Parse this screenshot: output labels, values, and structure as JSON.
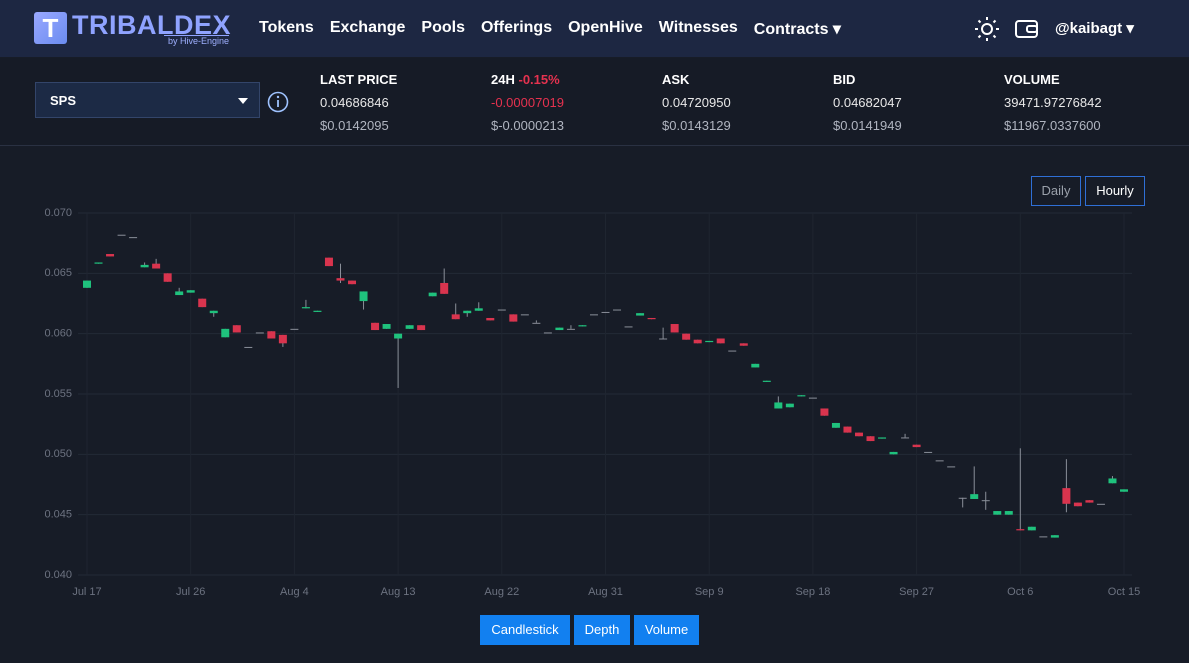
{
  "nav": {
    "logo": "TRIBALDEX",
    "logo_sub": "by Hive-Engine",
    "items": [
      "Tokens",
      "Exchange",
      "Pools",
      "Offerings",
      "OpenHive",
      "Witnesses",
      "Contracts"
    ],
    "user": "@kaibagt"
  },
  "market": {
    "token": "SPS",
    "stats": [
      {
        "label": "LAST PRICE",
        "value": "0.04686846",
        "usd": "$0.0142095"
      },
      {
        "label": "24H",
        "change": "-0.15%",
        "value": "-0.00007019",
        "usd": "$-0.0000213"
      },
      {
        "label": "ASK",
        "value": "0.04720950",
        "usd": "$0.0143129"
      },
      {
        "label": "BID",
        "value": "0.04682047",
        "usd": "$0.0141949"
      },
      {
        "label": "VOLUME",
        "value": "39471.97276842",
        "usd": "$11967.0337600"
      }
    ]
  },
  "interval_buttons": [
    "Daily",
    "Hourly"
  ],
  "view_buttons": [
    "Candlestick",
    "Depth",
    "Volume"
  ],
  "chart_data": {
    "type": "candlestick",
    "up_color": "#1fc27d",
    "down_color": "#d9344e",
    "flat_color": "#8a8f99",
    "grid": true,
    "categories": [
      "Jul 17",
      null,
      null,
      null,
      null,
      null,
      null,
      null,
      null,
      "Jul 26",
      null,
      null,
      null,
      null,
      null,
      null,
      null,
      null,
      "Aug 4",
      null,
      null,
      null,
      null,
      null,
      null,
      null,
      null,
      "Aug 13",
      null,
      null,
      null,
      null,
      null,
      null,
      null,
      null,
      "Aug 22",
      null,
      null,
      null,
      null,
      null,
      null,
      null,
      null,
      "Aug 31",
      null,
      null,
      null,
      null,
      null,
      null,
      null,
      null,
      "Sep 9",
      null,
      null,
      null,
      null,
      null,
      null,
      null,
      null,
      "Sep 18",
      null,
      null,
      null,
      null,
      null,
      null,
      null,
      null,
      "Sep 27",
      null,
      null,
      null,
      null,
      null,
      null,
      null,
      null,
      "Oct 6",
      null,
      null,
      null,
      null,
      null,
      null,
      null,
      null,
      "Oct 15"
    ],
    "open": [
      0.0638,
      0.0658,
      0.0666,
      0.0682,
      0.068,
      0.0655,
      0.0658,
      0.065,
      0.0632,
      0.0634,
      0.0629,
      0.0617,
      0.0597,
      0.0607,
      0.0589,
      0.0601,
      0.0602,
      0.0599,
      0.0604,
      0.0621,
      0.0618,
      0.0663,
      0.0646,
      0.0644,
      0.0627,
      0.0609,
      0.0604,
      0.0596,
      0.0604,
      0.0607,
      0.0631,
      0.0642,
      0.0616,
      0.0617,
      0.0619,
      0.0613,
      0.062,
      0.0616,
      0.0616,
      0.0609,
      0.0601,
      0.0603,
      0.0604,
      0.0606,
      0.0616,
      0.0618,
      0.062,
      0.0606,
      0.0615,
      0.0613,
      0.0596,
      0.0608,
      0.06,
      0.0595,
      0.0593,
      0.0596,
      0.0586,
      0.0592,
      0.0572,
      0.056,
      0.0538,
      0.0539,
      0.0548,
      0.0547,
      0.0538,
      0.0522,
      0.0523,
      0.0518,
      0.0515,
      0.0513,
      0.05,
      0.0514,
      0.0508,
      0.0502,
      0.0495,
      0.049,
      0.0464,
      0.0463,
      0.0462,
      0.045,
      0.045,
      0.0438,
      0.0437,
      0.0432,
      0.0431,
      0.0472,
      0.046,
      0.0462,
      0.0459,
      0.0476,
      0.0469
    ],
    "high": [
      0.0644,
      0.0659,
      0.0666,
      0.0682,
      0.068,
      0.0659,
      0.0662,
      0.065,
      0.0638,
      0.0636,
      0.0629,
      0.0619,
      0.0604,
      0.0607,
      0.0589,
      0.0601,
      0.0602,
      0.0599,
      0.0604,
      0.0628,
      0.0619,
      0.0663,
      0.0658,
      0.0644,
      0.0635,
      0.0609,
      0.0608,
      0.06,
      0.0607,
      0.0607,
      0.0634,
      0.0654,
      0.0625,
      0.0619,
      0.0626,
      0.0613,
      0.062,
      0.0616,
      0.0616,
      0.0611,
      0.0601,
      0.0605,
      0.0607,
      0.0607,
      0.0616,
      0.0618,
      0.062,
      0.0606,
      0.0617,
      0.0613,
      0.0605,
      0.0608,
      0.06,
      0.0595,
      0.0594,
      0.0596,
      0.0586,
      0.0592,
      0.0575,
      0.0561,
      0.0548,
      0.0542,
      0.0549,
      0.0547,
      0.0538,
      0.0526,
      0.0523,
      0.0518,
      0.0515,
      0.0514,
      0.0502,
      0.0517,
      0.0508,
      0.0502,
      0.0495,
      0.049,
      0.0464,
      0.049,
      0.0469,
      0.0453,
      0.0453,
      0.0505,
      0.044,
      0.0432,
      0.0433,
      0.0496,
      0.046,
      0.0462,
      0.0459,
      0.0482,
      0.0471
    ],
    "low": [
      0.0638,
      0.0658,
      0.0664,
      0.0682,
      0.068,
      0.0655,
      0.0654,
      0.0643,
      0.0632,
      0.0634,
      0.0622,
      0.0614,
      0.0597,
      0.0601,
      0.0589,
      0.0601,
      0.0596,
      0.0589,
      0.0604,
      0.0621,
      0.0618,
      0.0656,
      0.0642,
      0.0641,
      0.062,
      0.0603,
      0.0604,
      0.0555,
      0.0604,
      0.0603,
      0.0631,
      0.0633,
      0.0612,
      0.0614,
      0.0619,
      0.0611,
      0.062,
      0.061,
      0.0616,
      0.0609,
      0.0601,
      0.0603,
      0.0604,
      0.0606,
      0.0616,
      0.0618,
      0.062,
      0.0606,
      0.0615,
      0.0612,
      0.0596,
      0.0601,
      0.0595,
      0.0592,
      0.0593,
      0.0592,
      0.0586,
      0.059,
      0.0572,
      0.056,
      0.0538,
      0.0539,
      0.0548,
      0.0547,
      0.0532,
      0.0522,
      0.0518,
      0.0515,
      0.0511,
      0.0513,
      0.05,
      0.0514,
      0.0506,
      0.0502,
      0.0495,
      0.049,
      0.0456,
      0.0463,
      0.0454,
      0.045,
      0.045,
      0.0437,
      0.0437,
      0.0432,
      0.0431,
      0.0452,
      0.0457,
      0.046,
      0.0459,
      0.0476,
      0.0469
    ],
    "close": [
      0.0644,
      0.0659,
      0.0664,
      0.0682,
      0.068,
      0.0657,
      0.0654,
      0.0643,
      0.0635,
      0.0636,
      0.0622,
      0.0619,
      0.0604,
      0.0601,
      0.0589,
      0.0601,
      0.0596,
      0.0592,
      0.0604,
      0.0622,
      0.0619,
      0.0656,
      0.0644,
      0.0641,
      0.0635,
      0.0603,
      0.0608,
      0.06,
      0.0607,
      0.0603,
      0.0634,
      0.0633,
      0.0612,
      0.0619,
      0.0621,
      0.0611,
      0.062,
      0.061,
      0.0616,
      0.0609,
      0.0601,
      0.0605,
      0.0604,
      0.0607,
      0.0616,
      0.0618,
      0.062,
      0.0606,
      0.0617,
      0.0612,
      0.0596,
      0.0601,
      0.0595,
      0.0592,
      0.0594,
      0.0592,
      0.0586,
      0.059,
      0.0575,
      0.0561,
      0.0543,
      0.0542,
      0.0549,
      0.0547,
      0.0532,
      0.0526,
      0.0518,
      0.0515,
      0.0511,
      0.0514,
      0.0502,
      0.0514,
      0.0506,
      0.0502,
      0.0495,
      0.049,
      0.0464,
      0.0467,
      0.0462,
      0.0453,
      0.0453,
      0.0437,
      0.044,
      0.0432,
      0.0433,
      0.0459,
      0.0457,
      0.046,
      0.0459,
      0.048,
      0.0471
    ],
    "ylim": [
      0.04,
      0.07
    ],
    "yticks": [
      {
        "value": 0.04,
        "label": "0.040"
      },
      0.045,
      {
        "value": 0.05,
        "label": "0.050"
      },
      0.055,
      {
        "value": 0.06,
        "label": "0.060"
      },
      0.065,
      {
        "value": 0.07,
        "label": "0.070"
      }
    ]
  }
}
